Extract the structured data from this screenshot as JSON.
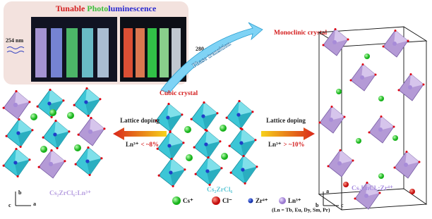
{
  "panel": {
    "title_parts": [
      "Tunable ",
      "Photo",
      "luminescence"
    ],
    "excitation_left": "254 nm",
    "excitation_right": "280 nm"
  },
  "phase_transition": "Phase transition",
  "monoclinic": "Monoclinic crystal",
  "cubic": "Cubic crystal",
  "doping_left": {
    "label": "Lattice doping",
    "ion": "Ln³⁺",
    "condition": "< ~8%"
  },
  "doping_right": {
    "label": "Lattice doping",
    "ion": "Ln³⁺",
    "condition": "> ~10%"
  },
  "structures": [
    "Cs₂ZrCl₆:Ln³⁺",
    "Cs₂ZrCl₆",
    "Cs₂LnCl₅:Zr⁴⁺"
  ],
  "legend": {
    "items": [
      "Cs⁺",
      "Cl⁻",
      "Zr⁴⁺",
      "Ln³⁺"
    ],
    "note": "(Ln = Tb, Eu, Dy, Sm, Pr)"
  },
  "axes": {
    "left": [
      "b",
      "c",
      "a"
    ],
    "right": [
      "a",
      "b",
      "c"
    ]
  }
}
